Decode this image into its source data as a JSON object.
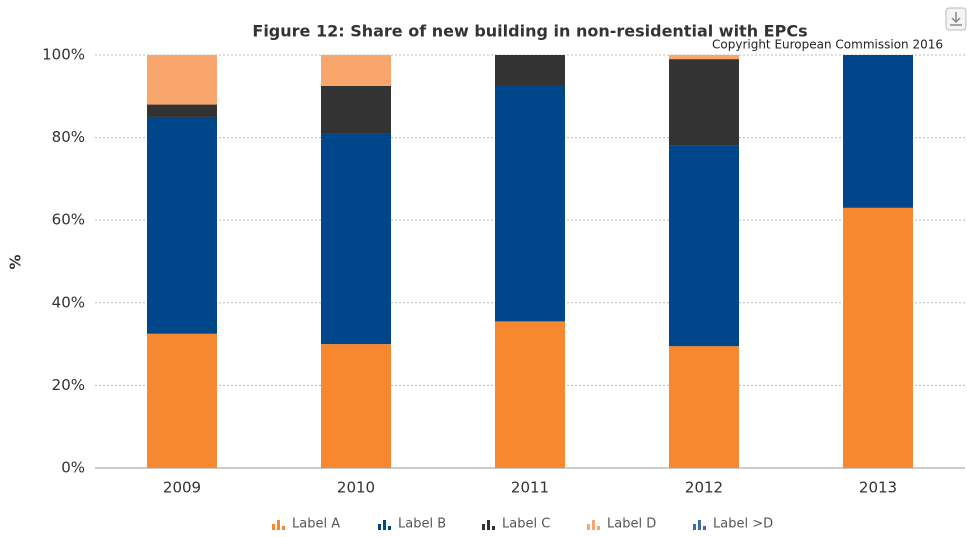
{
  "chart_data": {
    "type": "stacked_bar",
    "title": "Figure 12: Share of new building in non-residential with EPCs",
    "subtitle": "Copyright European Commission 2016",
    "y_label": "%",
    "categories": [
      "2009",
      "2010",
      "2011",
      "2012",
      "2013"
    ],
    "series": [
      {
        "name": "Label A",
        "color": "#f7882f",
        "values": [
          32.5,
          30,
          35.5,
          29.5,
          63
        ]
      },
      {
        "name": "Label B",
        "color": "#00468b",
        "values": [
          52.5,
          51,
          57,
          48.5,
          37
        ]
      },
      {
        "name": "Label C",
        "color": "#333333",
        "values": [
          3,
          11.5,
          7.5,
          21,
          0
        ]
      },
      {
        "name": "Label D",
        "color": "#f9a66c",
        "values": [
          12,
          7.5,
          0,
          1,
          0
        ]
      },
      {
        "name": "Label >D",
        "color": "#3d6cab",
        "values": [
          0,
          0,
          0,
          0,
          0
        ]
      }
    ],
    "ylim": [
      0,
      100
    ],
    "yticks": [
      {
        "value": 0,
        "label": "0%"
      },
      {
        "value": 20,
        "label": "20%"
      },
      {
        "value": 40,
        "label": "40%"
      },
      {
        "value": 60,
        "label": "60%"
      },
      {
        "value": 80,
        "label": "80%"
      },
      {
        "value": 100,
        "label": "100%"
      }
    ],
    "grid": true,
    "legend": "bottom"
  }
}
